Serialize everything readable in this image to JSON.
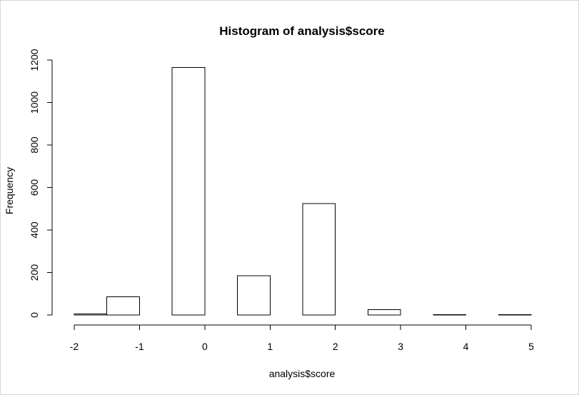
{
  "chart_data": {
    "type": "histogram",
    "title": "Histogram of analysis$score",
    "xlabel": "analysis$score",
    "ylabel": "Frequency",
    "xlim": [
      -2,
      5
    ],
    "ylim": [
      0,
      1200
    ],
    "x_ticks": [
      "-2",
      "-1",
      "0",
      "1",
      "2",
      "3",
      "4",
      "5"
    ],
    "y_ticks": [
      "0",
      "200",
      "400",
      "600",
      "800",
      "1000",
      "1200"
    ],
    "grid": false,
    "bins": [
      {
        "start": -2.0,
        "end": -1.5,
        "count": 5
      },
      {
        "start": -1.5,
        "end": -1.0,
        "count": 85
      },
      {
        "start": -1.0,
        "end": -0.5,
        "count": 0
      },
      {
        "start": -0.5,
        "end": 0.0,
        "count": 1165
      },
      {
        "start": 0.0,
        "end": 0.5,
        "count": 0
      },
      {
        "start": 0.5,
        "end": 1.0,
        "count": 185
      },
      {
        "start": 1.0,
        "end": 1.5,
        "count": 0
      },
      {
        "start": 1.5,
        "end": 2.0,
        "count": 525
      },
      {
        "start": 2.0,
        "end": 2.5,
        "count": 0
      },
      {
        "start": 2.5,
        "end": 3.0,
        "count": 25
      },
      {
        "start": 3.0,
        "end": 3.5,
        "count": 0
      },
      {
        "start": 3.5,
        "end": 4.0,
        "count": 2
      },
      {
        "start": 4.0,
        "end": 4.5,
        "count": 0
      },
      {
        "start": 4.5,
        "end": 5.0,
        "count": 2
      }
    ],
    "colors": {
      "bar_fill": "#ffffff",
      "bar_stroke": "#000000",
      "axis": "#000000"
    }
  }
}
